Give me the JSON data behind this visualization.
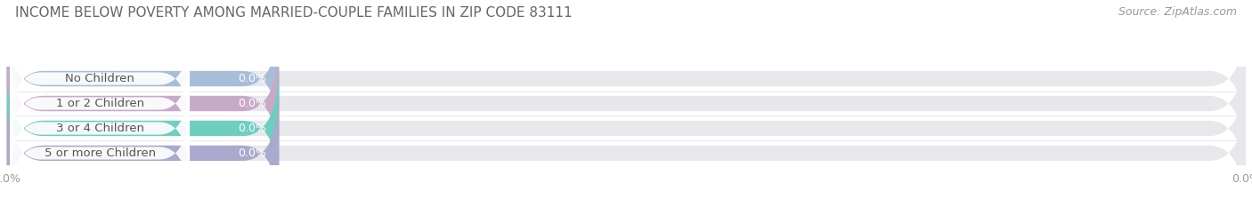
{
  "title": "INCOME BELOW POVERTY AMONG MARRIED-COUPLE FAMILIES IN ZIP CODE 83111",
  "source": "Source: ZipAtlas.com",
  "categories": [
    "No Children",
    "1 or 2 Children",
    "3 or 4 Children",
    "5 or more Children"
  ],
  "values": [
    0.0,
    0.0,
    0.0,
    0.0
  ],
  "bar_colors": [
    "#a8bdd8",
    "#c8aac8",
    "#6ecec0",
    "#aaaace"
  ],
  "bar_bg_color": "#e8e8ec",
  "background_color": "#ffffff",
  "title_fontsize": 11,
  "source_fontsize": 9,
  "bar_label_fontsize": 9,
  "category_fontsize": 9.5,
  "tick_fontsize": 9,
  "tick_color": "#999999",
  "title_color": "#666666",
  "source_color": "#999999",
  "cat_text_color": "#555555",
  "val_text_color": "#ffffff"
}
